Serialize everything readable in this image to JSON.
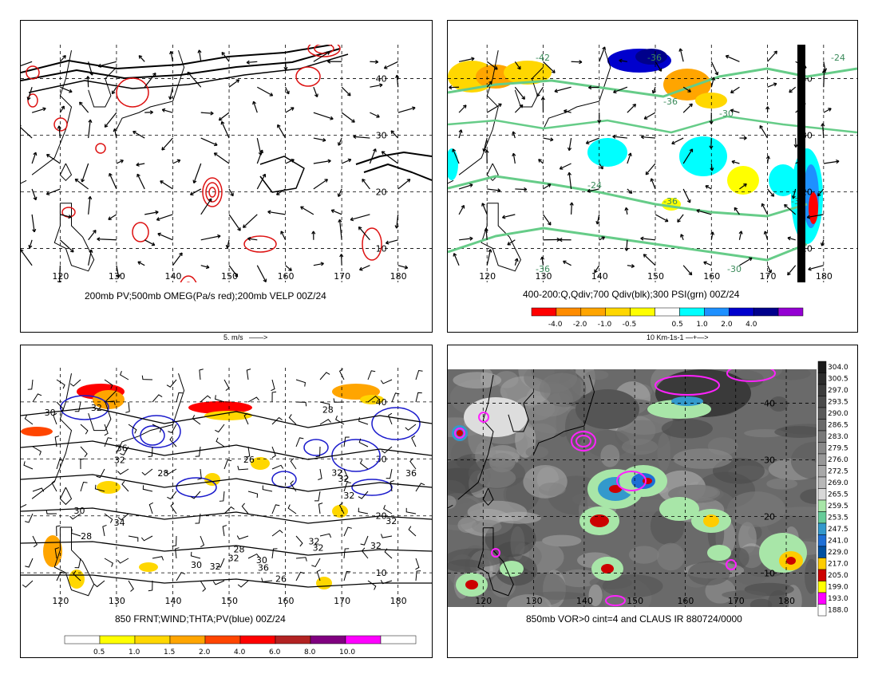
{
  "panels": [
    {
      "id": "tl",
      "caption": "200mb PV;500mb OMEG(Pa/s red);200mb VELP 00Z/24",
      "vector_ref": "5. m/s",
      "lat_labels": [
        "40",
        "30",
        "20",
        "10"
      ],
      "lon_labels": [
        "120",
        "130",
        "140",
        "150",
        "160",
        "170",
        "180"
      ]
    },
    {
      "id": "tr",
      "caption": "400-200:Q,Qdiv;700 Qdiv(blk);300 PSI(grn) 00Z/24",
      "vector_ref": "10 Km-1s-1",
      "lat_labels": [
        "40",
        "30",
        "20",
        "10"
      ],
      "lon_labels": [
        "120",
        "130",
        "140",
        "150",
        "160",
        "170",
        "180"
      ],
      "contour_labels": [
        "-42",
        "-36",
        "-36",
        "-30",
        "-24",
        "-36",
        "-36",
        "-30",
        "-24",
        "-30"
      ],
      "colorbar": {
        "labels": [
          "-4.0",
          "-2.0",
          "-1.0",
          "-0.5",
          "0.5",
          "1.0",
          "2.0",
          "4.0"
        ],
        "colors": [
          "#ff0000",
          "#ff8c00",
          "#ffa500",
          "#ffd700",
          "#ffff00",
          "#ffffff",
          "#00ffff",
          "#1e90ff",
          "#0000cd",
          "#00008b",
          "#9400d3"
        ]
      }
    },
    {
      "id": "bl",
      "caption": "850 FRNT;WIND;THTA;PV(blue) 00Z/24",
      "lat_labels": [
        "40",
        "30",
        "20",
        "10"
      ],
      "lon_labels": [
        "120",
        "130",
        "140",
        "150",
        "160",
        "170",
        "180"
      ],
      "contour_labels": [
        "30",
        "28",
        "26",
        "30",
        "36",
        "28",
        "32",
        "30",
        "32",
        "36",
        "34",
        "32",
        "32",
        "26",
        "28",
        "36",
        "32",
        "32",
        "32",
        "32",
        "32",
        "32",
        "32",
        "28",
        "30"
      ],
      "colorbar": {
        "labels": [
          "0.5",
          "1.0",
          "1.5",
          "2.0",
          "4.0",
          "6.0",
          "8.0",
          "10.0"
        ],
        "colors": [
          "#ffffff",
          "#ffff00",
          "#ffd700",
          "#ffa500",
          "#ff4500",
          "#ff0000",
          "#b22222",
          "#800080",
          "#ff00ff",
          "#ffffff"
        ]
      }
    },
    {
      "id": "br",
      "caption": "850mb VOR>0 cint=4 and CLAUS IR 880724/0000",
      "lat_labels": [
        "40",
        "30",
        "20",
        "10"
      ],
      "lon_labels": [
        "120",
        "130",
        "140",
        "150",
        "160",
        "170",
        "180"
      ],
      "colorbar": {
        "labels": [
          "304.0",
          "300.5",
          "297.0",
          "293.5",
          "290.0",
          "286.5",
          "283.0",
          "279.5",
          "276.0",
          "272.5",
          "269.0",
          "265.5",
          "259.5",
          "253.5",
          "247.5",
          "241.0",
          "229.0",
          "217.0",
          "205.0",
          "199.0",
          "193.0",
          "188.0"
        ],
        "colors": [
          "#1a1a1a",
          "#2b2b2b",
          "#3b3b3b",
          "#4a4a4a",
          "#5a5a5a",
          "#696969",
          "#797979",
          "#888888",
          "#989898",
          "#a8a8a8",
          "#b8b8b8",
          "#d8d8d8",
          "#a8e6a8",
          "#66cc99",
          "#3399cc",
          "#1e6fd6",
          "#0050a0",
          "#ffcc00",
          "#cc0000",
          "#ffff00",
          "#ff00ff",
          "#ffffff"
        ]
      }
    }
  ]
}
